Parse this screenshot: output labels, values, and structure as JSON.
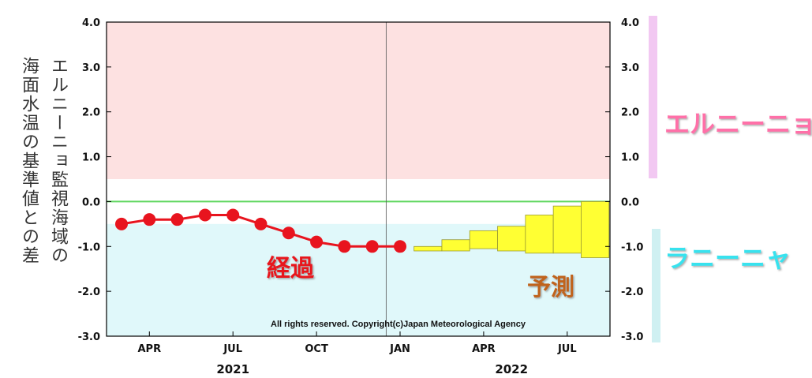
{
  "chart_data": {
    "type": "line",
    "ylabel_lines": [
      "エルニーニョ監視海域の",
      "海面水温の基準値との差"
    ],
    "ylim": [
      -3.0,
      4.0
    ],
    "yticks": [
      "4.0",
      "3.0",
      "2.0",
      "1.0",
      "0.0",
      "-1.0",
      "-2.0",
      "-3.0"
    ],
    "x_month_labels": [
      {
        "month": "2021-04",
        "label": "APR"
      },
      {
        "month": "2021-07",
        "label": "JUL"
      },
      {
        "month": "2021-10",
        "label": "OCT"
      },
      {
        "month": "2022-01",
        "label": "JAN"
      },
      {
        "month": "2022-04",
        "label": "APR"
      },
      {
        "month": "2022-07",
        "label": "JUL"
      }
    ],
    "x_year_labels": [
      {
        "month": "2021-07",
        "label": "2021"
      },
      {
        "month": "2022-05",
        "label": "2022"
      }
    ],
    "year_divider_month": "2021-12.5",
    "observed": {
      "name": "経過",
      "color": "#e8141e",
      "points": [
        {
          "month": "2021-03",
          "value": -0.5
        },
        {
          "month": "2021-04",
          "value": -0.4
        },
        {
          "month": "2021-05",
          "value": -0.4
        },
        {
          "month": "2021-06",
          "value": -0.3
        },
        {
          "month": "2021-07",
          "value": -0.3
        },
        {
          "month": "2021-08",
          "value": -0.5
        },
        {
          "month": "2021-09",
          "value": -0.7
        },
        {
          "month": "2021-10",
          "value": -0.9
        },
        {
          "month": "2021-11",
          "value": -1.0
        },
        {
          "month": "2021-12",
          "value": -1.0
        },
        {
          "month": "2022-01",
          "value": -1.0
        }
      ]
    },
    "forecast": {
      "name": "予測",
      "color": "#ffff33",
      "boxes": [
        {
          "month": "2022-02",
          "low": -1.1,
          "high": -1.0
        },
        {
          "month": "2022-03",
          "low": -1.1,
          "high": -0.85
        },
        {
          "month": "2022-04",
          "low": -1.05,
          "high": -0.65
        },
        {
          "month": "2022-05",
          "low": -1.1,
          "high": -0.55
        },
        {
          "month": "2022-06",
          "low": -1.15,
          "high": -0.3
        },
        {
          "month": "2022-07",
          "low": -1.15,
          "high": -0.1
        },
        {
          "month": "2022-08",
          "low": -1.25,
          "high": 0.0
        }
      ]
    },
    "bands": [
      {
        "name": "エルニーニョ",
        "from": 0.5,
        "to": 4.0,
        "fill": "#fde1e1",
        "bar": "#f2c8f2",
        "label_color": "#ff6fa8"
      },
      {
        "name": "ラニーニャ",
        "from": -3.0,
        "to": -0.5,
        "fill": "#e0f8fa",
        "bar": "#cff0f2",
        "label_color": "#37e2ee"
      }
    ],
    "zero_line_color": "#5fd65f",
    "copyright": "All rights reserved. Copyright(c)Japan Meteorological Agency",
    "grid": false
  }
}
